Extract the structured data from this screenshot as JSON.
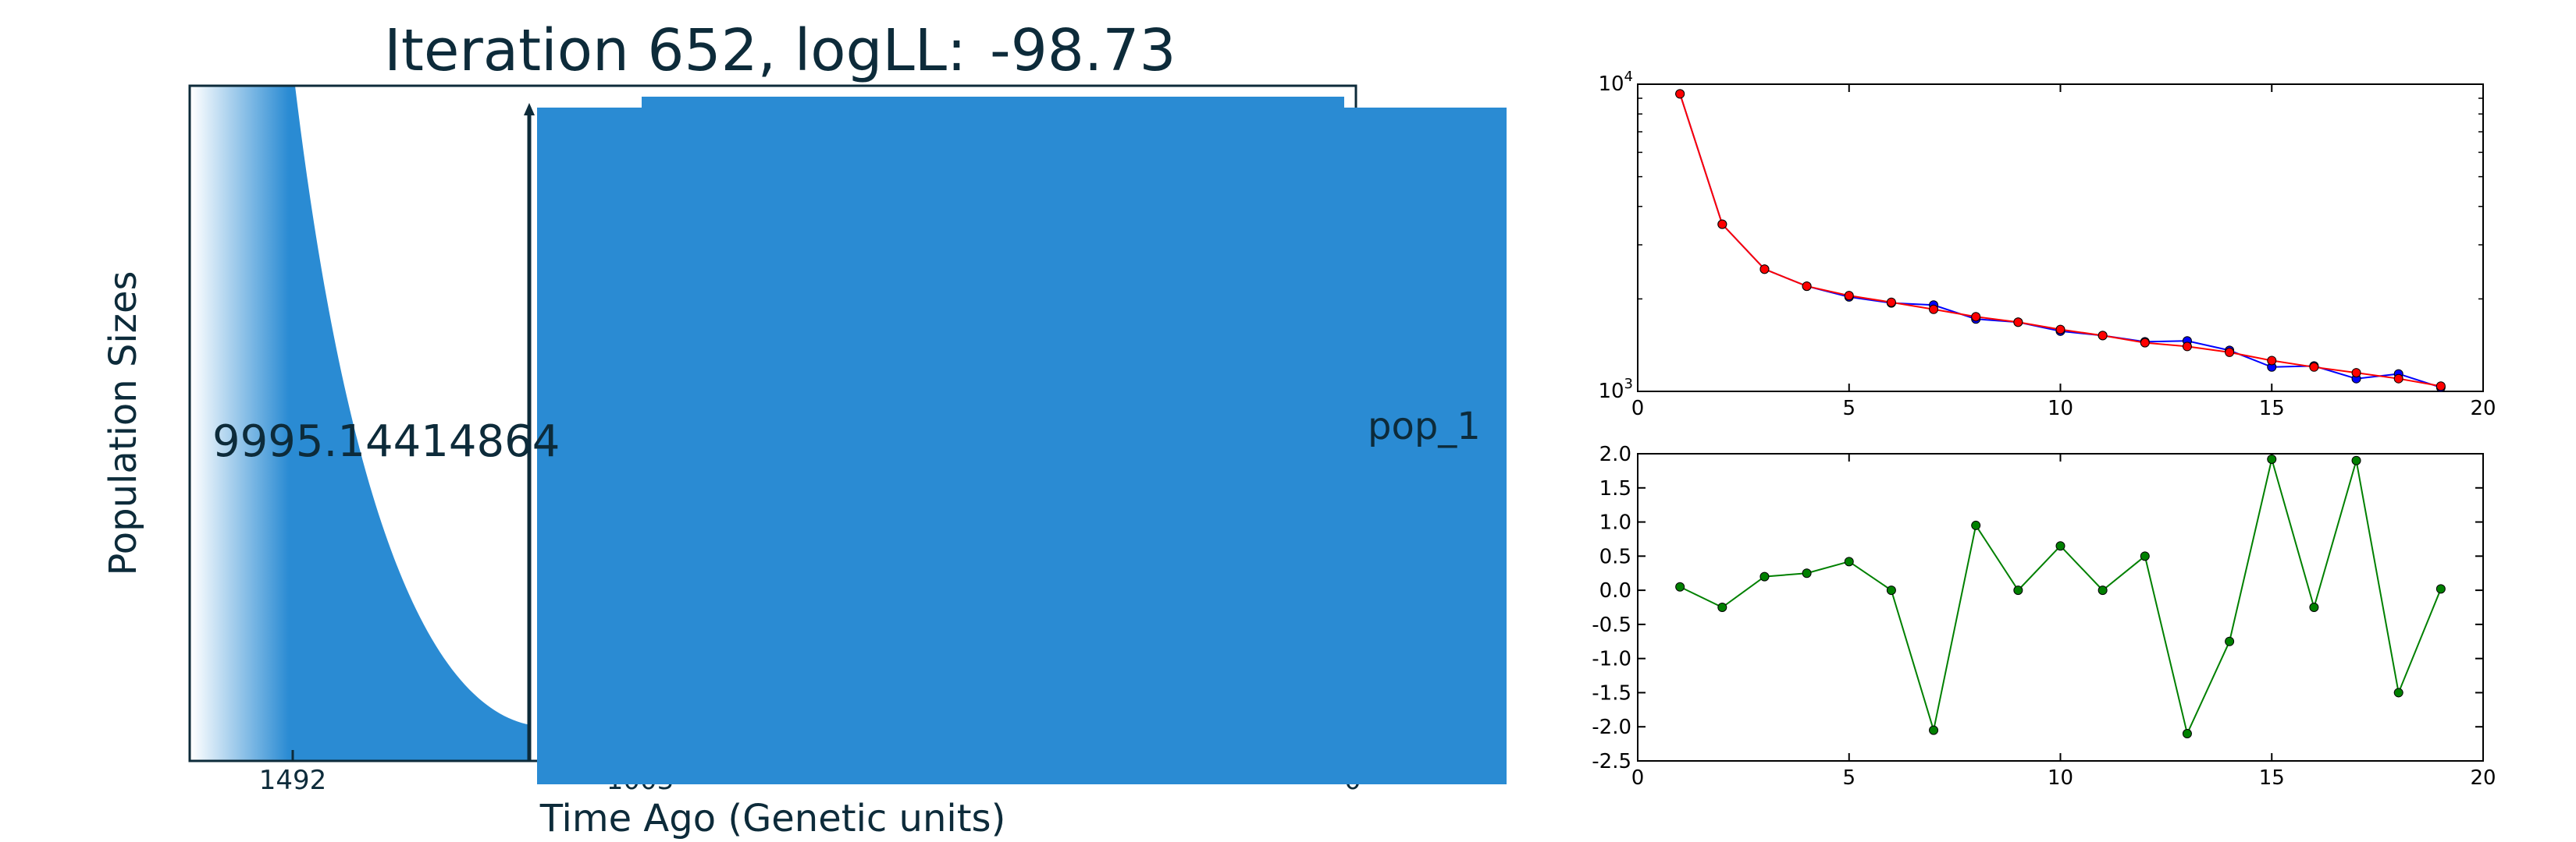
{
  "chart_data": [
    {
      "type": "area",
      "title_prefix": "Iteration 652, logLL:",
      "title_value": "-98.73",
      "xlabel": "Time Ago (Genetic units)",
      "ylabel": "Population Sizes",
      "x_ticks": [
        "1492",
        "1003",
        "0"
      ],
      "annotation": "9995.14414864",
      "series_name": "pop_1",
      "colors": {
        "fill": "#2a8bd3",
        "frame": "#0d2b3a"
      }
    },
    {
      "type": "line",
      "yscale": "log",
      "xlim": [
        0,
        20
      ],
      "ylim": [
        1000,
        10000
      ],
      "x_ticks": [
        "0",
        "5",
        "10",
        "15",
        "20"
      ],
      "y_ticks": [
        {
          "base": "10",
          "exp": "4"
        },
        {
          "base": "10",
          "exp": "3"
        }
      ],
      "x": [
        1,
        2,
        3,
        4,
        5,
        6,
        7,
        8,
        9,
        10,
        11,
        12,
        13,
        14,
        15,
        16,
        17,
        18,
        19
      ],
      "series": [
        {
          "color": "#0000ff",
          "values": [
            9300,
            3500,
            2500,
            2200,
            2030,
            1940,
            1910,
            1720,
            1680,
            1570,
            1520,
            1450,
            1460,
            1360,
            1200,
            1210,
            1100,
            1140,
            1030
          ]
        },
        {
          "color": "#ff0000",
          "values": [
            9300,
            3500,
            2500,
            2200,
            2050,
            1950,
            1850,
            1750,
            1680,
            1590,
            1520,
            1440,
            1400,
            1340,
            1260,
            1200,
            1150,
            1100,
            1040
          ]
        }
      ]
    },
    {
      "type": "line",
      "xlim": [
        0,
        20
      ],
      "ylim": [
        -2.5,
        2.0
      ],
      "x_ticks": [
        "0",
        "5",
        "10",
        "15",
        "20"
      ],
      "y_ticks": [
        "2.0",
        "1.5",
        "1.0",
        "0.5",
        "0.0",
        "-0.5",
        "-1.0",
        "-1.5",
        "-2.0",
        "-2.5"
      ],
      "x": [
        1,
        2,
        3,
        4,
        5,
        6,
        7,
        8,
        9,
        10,
        11,
        12,
        13,
        14,
        15,
        16,
        17,
        18,
        19
      ],
      "series": [
        {
          "color": "#008000",
          "values": [
            0.05,
            -0.25,
            0.2,
            0.25,
            0.42,
            0.0,
            -2.05,
            0.95,
            0.0,
            0.65,
            0.0,
            0.5,
            -2.1,
            -0.75,
            1.92,
            -0.25,
            1.9,
            -1.5,
            0.02
          ]
        }
      ]
    }
  ]
}
